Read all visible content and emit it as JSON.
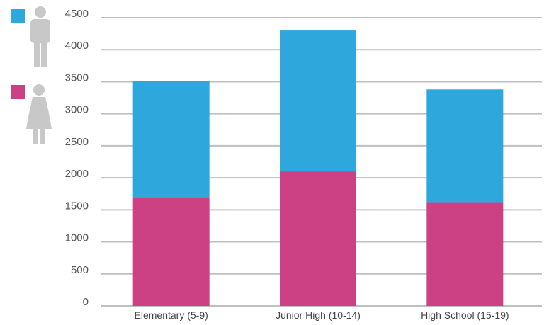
{
  "chart_data": {
    "type": "bar",
    "stacked": true,
    "categories": [
      "Elementary (5-9)",
      "Junior High (10-14)",
      "High School (15-19)"
    ],
    "series": [
      {
        "values": [
          1700,
          2100,
          1620
        ],
        "color": "#cc4183",
        "legend_icon": "female-person-icon"
      },
      {
        "values": [
          1810,
          2200,
          1760
        ],
        "color": "#2ea7dd",
        "legend_icon": "male-person-icon"
      }
    ],
    "yticks": [
      "0",
      "500",
      "1000",
      "1500",
      "2000",
      "2500",
      "3000",
      "3500",
      "4000",
      "4500"
    ],
    "ylim": [
      0,
      4500
    ],
    "grid": true,
    "legend_position": "top-left",
    "gridline_color": "#bfbfbf"
  }
}
